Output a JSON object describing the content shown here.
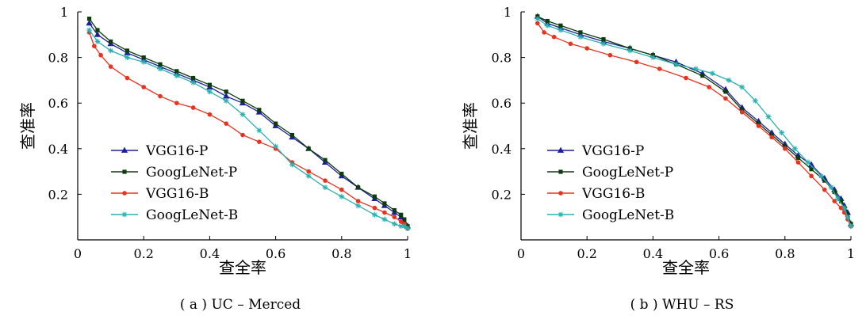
{
  "chart_data": [
    {
      "type": "line",
      "caption": "( a )  UC – Merced",
      "xlabel": "查全率",
      "ylabel": "查准率",
      "xlim": [
        0,
        1
      ],
      "ylim": [
        0,
        1
      ],
      "xticks": [
        "0",
        "0.2",
        "0.4",
        "0.6",
        "0.8",
        "1"
      ],
      "yticks": [
        "0.2",
        "0.4",
        "0.6",
        "0.8",
        "1"
      ],
      "grid": false,
      "legend_position": "bottom-left",
      "series": [
        {
          "name": "VGG16-P",
          "color": "#1f1f9a",
          "marker": "triangle",
          "x": [
            0.035,
            0.06,
            0.1,
            0.15,
            0.2,
            0.25,
            0.3,
            0.35,
            0.4,
            0.45,
            0.5,
            0.55,
            0.6,
            0.65,
            0.7,
            0.75,
            0.8,
            0.85,
            0.9,
            0.93,
            0.96,
            0.98,
            0.99,
            1.0
          ],
          "y": [
            0.95,
            0.9,
            0.86,
            0.82,
            0.79,
            0.76,
            0.73,
            0.7,
            0.67,
            0.63,
            0.6,
            0.56,
            0.5,
            0.45,
            0.4,
            0.34,
            0.28,
            0.23,
            0.18,
            0.15,
            0.12,
            0.1,
            0.08,
            0.06
          ]
        },
        {
          "name": "GoogLeNet-P",
          "color": "#0b3d0b",
          "marker": "square",
          "x": [
            0.035,
            0.06,
            0.1,
            0.15,
            0.2,
            0.25,
            0.3,
            0.35,
            0.4,
            0.45,
            0.5,
            0.55,
            0.6,
            0.65,
            0.7,
            0.75,
            0.8,
            0.85,
            0.9,
            0.93,
            0.96,
            0.98,
            0.99,
            1.0
          ],
          "y": [
            0.97,
            0.92,
            0.87,
            0.83,
            0.8,
            0.77,
            0.74,
            0.71,
            0.68,
            0.65,
            0.61,
            0.57,
            0.51,
            0.46,
            0.4,
            0.35,
            0.29,
            0.23,
            0.19,
            0.16,
            0.13,
            0.11,
            0.09,
            0.06
          ]
        },
        {
          "name": "VGG16-B",
          "color": "#e8321e",
          "marker": "circle",
          "x": [
            0.035,
            0.05,
            0.07,
            0.1,
            0.15,
            0.2,
            0.25,
            0.3,
            0.35,
            0.4,
            0.45,
            0.5,
            0.55,
            0.6,
            0.65,
            0.7,
            0.75,
            0.8,
            0.85,
            0.9,
            0.93,
            0.96,
            0.98,
            0.99,
            1.0
          ],
          "y": [
            0.91,
            0.85,
            0.81,
            0.76,
            0.71,
            0.67,
            0.63,
            0.6,
            0.58,
            0.55,
            0.51,
            0.46,
            0.43,
            0.4,
            0.34,
            0.3,
            0.26,
            0.22,
            0.17,
            0.14,
            0.12,
            0.1,
            0.08,
            0.07,
            0.05
          ]
        },
        {
          "name": "GoogLeNet-B",
          "color": "#2ab0b0",
          "marker": "star",
          "x": [
            0.035,
            0.06,
            0.1,
            0.15,
            0.2,
            0.25,
            0.3,
            0.35,
            0.4,
            0.45,
            0.5,
            0.55,
            0.6,
            0.65,
            0.7,
            0.75,
            0.8,
            0.85,
            0.9,
            0.93,
            0.96,
            0.98,
            0.99,
            1.0
          ],
          "y": [
            0.92,
            0.87,
            0.83,
            0.8,
            0.78,
            0.75,
            0.72,
            0.69,
            0.65,
            0.61,
            0.55,
            0.48,
            0.41,
            0.33,
            0.28,
            0.23,
            0.19,
            0.15,
            0.11,
            0.09,
            0.07,
            0.06,
            0.06,
            0.05
          ]
        }
      ]
    },
    {
      "type": "line",
      "caption": "( b )  WHU – RS",
      "xlabel": "查全率",
      "ylabel": "查准率",
      "xlim": [
        0,
        1
      ],
      "ylim": [
        0,
        1
      ],
      "xticks": [
        "0",
        "0.2",
        "0.4",
        "0.6",
        "0.8",
        "1"
      ],
      "yticks": [
        "0.2",
        "0.4",
        "0.6",
        "0.8",
        "1"
      ],
      "grid": false,
      "legend_position": "bottom-left",
      "series": [
        {
          "name": "VGG16-P",
          "color": "#1f1f9a",
          "marker": "triangle",
          "x": [
            0.05,
            0.08,
            0.12,
            0.18,
            0.25,
            0.33,
            0.4,
            0.47,
            0.55,
            0.62,
            0.67,
            0.72,
            0.76,
            0.8,
            0.84,
            0.88,
            0.92,
            0.95,
            0.97,
            0.98,
            0.99,
            1.0
          ],
          "y": [
            0.98,
            0.95,
            0.93,
            0.9,
            0.87,
            0.84,
            0.81,
            0.78,
            0.73,
            0.66,
            0.58,
            0.52,
            0.47,
            0.42,
            0.37,
            0.33,
            0.27,
            0.22,
            0.18,
            0.15,
            0.12,
            0.07
          ]
        },
        {
          "name": "GoogLeNet-P",
          "color": "#0b3d0b",
          "marker": "square",
          "x": [
            0.05,
            0.08,
            0.12,
            0.18,
            0.25,
            0.33,
            0.4,
            0.47,
            0.55,
            0.62,
            0.67,
            0.72,
            0.76,
            0.8,
            0.84,
            0.88,
            0.92,
            0.95,
            0.97,
            0.98,
            0.99,
            1.0
          ],
          "y": [
            0.98,
            0.96,
            0.94,
            0.91,
            0.88,
            0.84,
            0.81,
            0.77,
            0.72,
            0.65,
            0.57,
            0.51,
            0.46,
            0.41,
            0.36,
            0.31,
            0.26,
            0.21,
            0.17,
            0.14,
            0.11,
            0.07
          ]
        },
        {
          "name": "VGG16-B",
          "color": "#e8321e",
          "marker": "circle",
          "x": [
            0.05,
            0.07,
            0.1,
            0.15,
            0.2,
            0.27,
            0.35,
            0.42,
            0.5,
            0.57,
            0.62,
            0.67,
            0.72,
            0.76,
            0.8,
            0.84,
            0.88,
            0.92,
            0.95,
            0.97,
            0.98,
            0.99,
            1.0
          ],
          "y": [
            0.95,
            0.91,
            0.89,
            0.86,
            0.84,
            0.81,
            0.78,
            0.75,
            0.71,
            0.67,
            0.62,
            0.56,
            0.5,
            0.45,
            0.4,
            0.34,
            0.28,
            0.22,
            0.17,
            0.14,
            0.12,
            0.09,
            0.06
          ]
        },
        {
          "name": "GoogLeNet-B",
          "color": "#2ab0b0",
          "marker": "star",
          "x": [
            0.05,
            0.08,
            0.12,
            0.18,
            0.25,
            0.33,
            0.4,
            0.47,
            0.53,
            0.58,
            0.63,
            0.67,
            0.71,
            0.75,
            0.79,
            0.83,
            0.87,
            0.91,
            0.94,
            0.96,
            0.98,
            0.99,
            1.0
          ],
          "y": [
            0.97,
            0.94,
            0.92,
            0.89,
            0.86,
            0.83,
            0.8,
            0.77,
            0.75,
            0.73,
            0.7,
            0.67,
            0.61,
            0.54,
            0.47,
            0.4,
            0.34,
            0.28,
            0.23,
            0.18,
            0.14,
            0.1,
            0.06
          ]
        }
      ]
    }
  ]
}
